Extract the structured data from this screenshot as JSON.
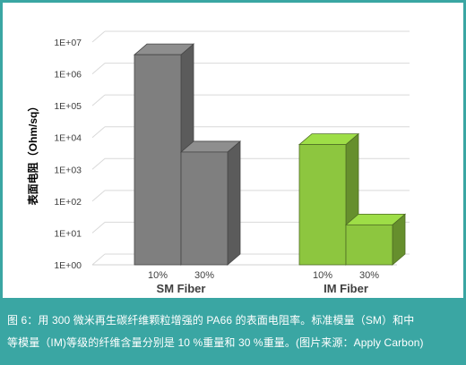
{
  "chart_data": {
    "type": "bar",
    "yaxis": {
      "label": "表面电阻（Ohm/sq）",
      "scale": "log",
      "ylim": [
        1,
        10000000
      ],
      "ticks": [
        "1E+00",
        "1E+01",
        "1E+02",
        "1E+03",
        "1E+04",
        "1E+05",
        "1E+06",
        "1E+07"
      ]
    },
    "groups": [
      {
        "name": "SM Fiber",
        "color": "#7f7f7f",
        "bars": [
          {
            "category": "10%",
            "value": 4000000
          },
          {
            "category": "30%",
            "value": 3500
          }
        ]
      },
      {
        "name": "IM Fiber",
        "color": "#8dc63f",
        "bars": [
          {
            "category": "10%",
            "value": 6000
          },
          {
            "category": "30%",
            "value": 18
          }
        ]
      }
    ],
    "grid": true,
    "style": "3d"
  },
  "caption": {
    "line1": "图 6：用 300 微米再生碳纤维颗粒增强的 PA66 的表面电阻率。标准模量（SM）和中",
    "line2": "等模量（IM)等级的纤维含量分别是 10 %重量和 30 %重量。(图片来源：Apply Carbon)"
  }
}
